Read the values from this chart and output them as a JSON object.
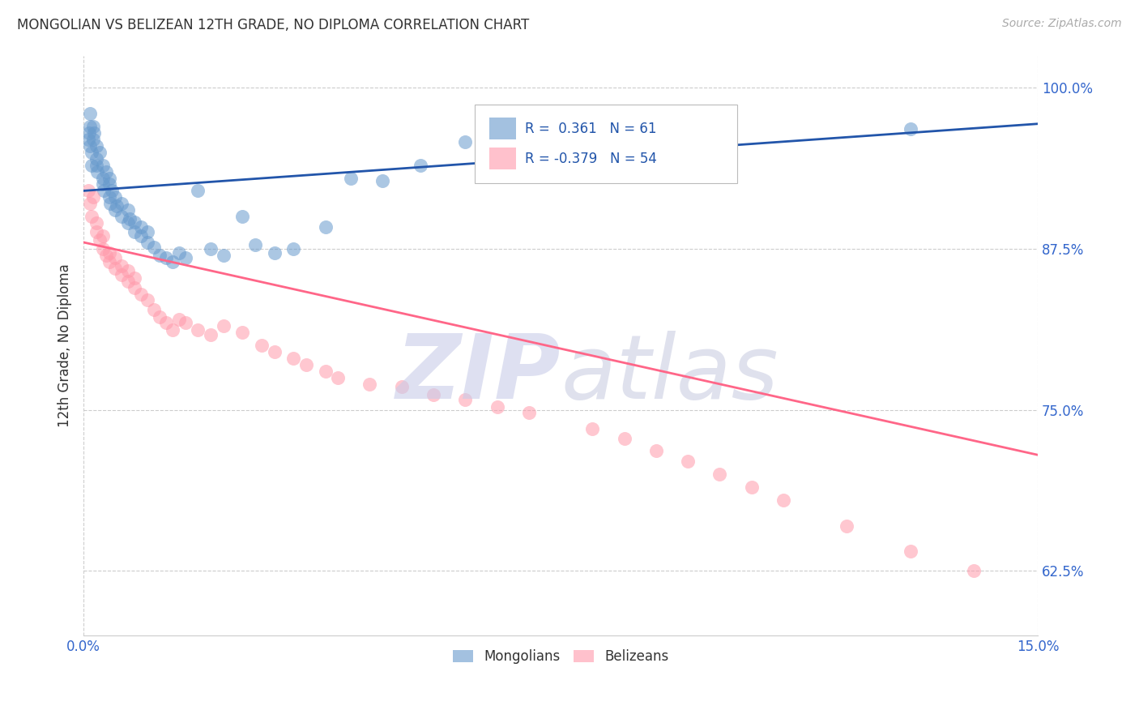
{
  "title": "MONGOLIAN VS BELIZEAN 12TH GRADE, NO DIPLOMA CORRELATION CHART",
  "source": "Source: ZipAtlas.com",
  "ylabel": "12th Grade, No Diploma",
  "legend_mongolian": "Mongolians",
  "legend_belizean": "Belizeans",
  "R_mongolian": 0.361,
  "N_mongolian": 61,
  "R_belizean": -0.379,
  "N_belizean": 54,
  "mongolian_color": "#6699CC",
  "belizean_color": "#FF99AA",
  "mongolian_line_color": "#2255AA",
  "belizean_line_color": "#FF6688",
  "background_color": "#FFFFFF",
  "xlim": [
    0.0,
    0.15
  ],
  "ylim": [
    0.575,
    1.025
  ],
  "mon_trend_x0": 0.0,
  "mon_trend_y0": 0.92,
  "mon_trend_x1": 0.15,
  "mon_trend_y1": 0.972,
  "bel_trend_x0": 0.0,
  "bel_trend_y0": 0.88,
  "bel_trend_x1": 0.15,
  "bel_trend_y1": 0.715,
  "mongolian_x": [
    0.0008,
    0.0009,
    0.001,
    0.001,
    0.001,
    0.0012,
    0.0013,
    0.0015,
    0.0015,
    0.0016,
    0.002,
    0.002,
    0.002,
    0.0022,
    0.0025,
    0.003,
    0.003,
    0.003,
    0.0032,
    0.0035,
    0.004,
    0.004,
    0.004,
    0.0042,
    0.0045,
    0.005,
    0.005,
    0.0052,
    0.006,
    0.006,
    0.007,
    0.007,
    0.0072,
    0.008,
    0.008,
    0.009,
    0.009,
    0.01,
    0.01,
    0.011,
    0.012,
    0.013,
    0.014,
    0.015,
    0.016,
    0.018,
    0.02,
    0.022,
    0.025,
    0.027,
    0.03,
    0.033,
    0.038,
    0.042,
    0.047,
    0.053,
    0.06,
    0.07,
    0.085,
    0.1,
    0.13
  ],
  "mongolian_y": [
    0.96,
    0.965,
    0.955,
    0.97,
    0.98,
    0.95,
    0.94,
    0.96,
    0.97,
    0.965,
    0.94,
    0.945,
    0.955,
    0.935,
    0.95,
    0.925,
    0.93,
    0.94,
    0.92,
    0.935,
    0.915,
    0.925,
    0.93,
    0.91,
    0.92,
    0.905,
    0.915,
    0.908,
    0.9,
    0.91,
    0.895,
    0.905,
    0.898,
    0.888,
    0.896,
    0.885,
    0.892,
    0.88,
    0.888,
    0.876,
    0.87,
    0.868,
    0.865,
    0.872,
    0.868,
    0.92,
    0.875,
    0.87,
    0.9,
    0.878,
    0.872,
    0.875,
    0.892,
    0.93,
    0.928,
    0.94,
    0.958,
    0.968,
    0.972,
    0.98,
    0.968
  ],
  "belizean_x": [
    0.0008,
    0.001,
    0.0013,
    0.0015,
    0.002,
    0.002,
    0.0025,
    0.003,
    0.003,
    0.0035,
    0.004,
    0.004,
    0.005,
    0.005,
    0.006,
    0.006,
    0.007,
    0.007,
    0.008,
    0.008,
    0.009,
    0.01,
    0.011,
    0.012,
    0.013,
    0.014,
    0.015,
    0.016,
    0.018,
    0.02,
    0.022,
    0.025,
    0.028,
    0.03,
    0.033,
    0.035,
    0.038,
    0.04,
    0.045,
    0.05,
    0.055,
    0.06,
    0.065,
    0.07,
    0.08,
    0.085,
    0.09,
    0.095,
    0.1,
    0.105,
    0.11,
    0.12,
    0.13,
    0.14
  ],
  "belizean_y": [
    0.92,
    0.91,
    0.9,
    0.915,
    0.888,
    0.895,
    0.882,
    0.875,
    0.885,
    0.87,
    0.865,
    0.872,
    0.86,
    0.868,
    0.855,
    0.862,
    0.85,
    0.858,
    0.845,
    0.852,
    0.84,
    0.835,
    0.828,
    0.822,
    0.818,
    0.812,
    0.82,
    0.818,
    0.812,
    0.808,
    0.815,
    0.81,
    0.8,
    0.795,
    0.79,
    0.785,
    0.78,
    0.775,
    0.77,
    0.768,
    0.762,
    0.758,
    0.752,
    0.748,
    0.735,
    0.728,
    0.718,
    0.71,
    0.7,
    0.69,
    0.68,
    0.66,
    0.64,
    0.625
  ]
}
